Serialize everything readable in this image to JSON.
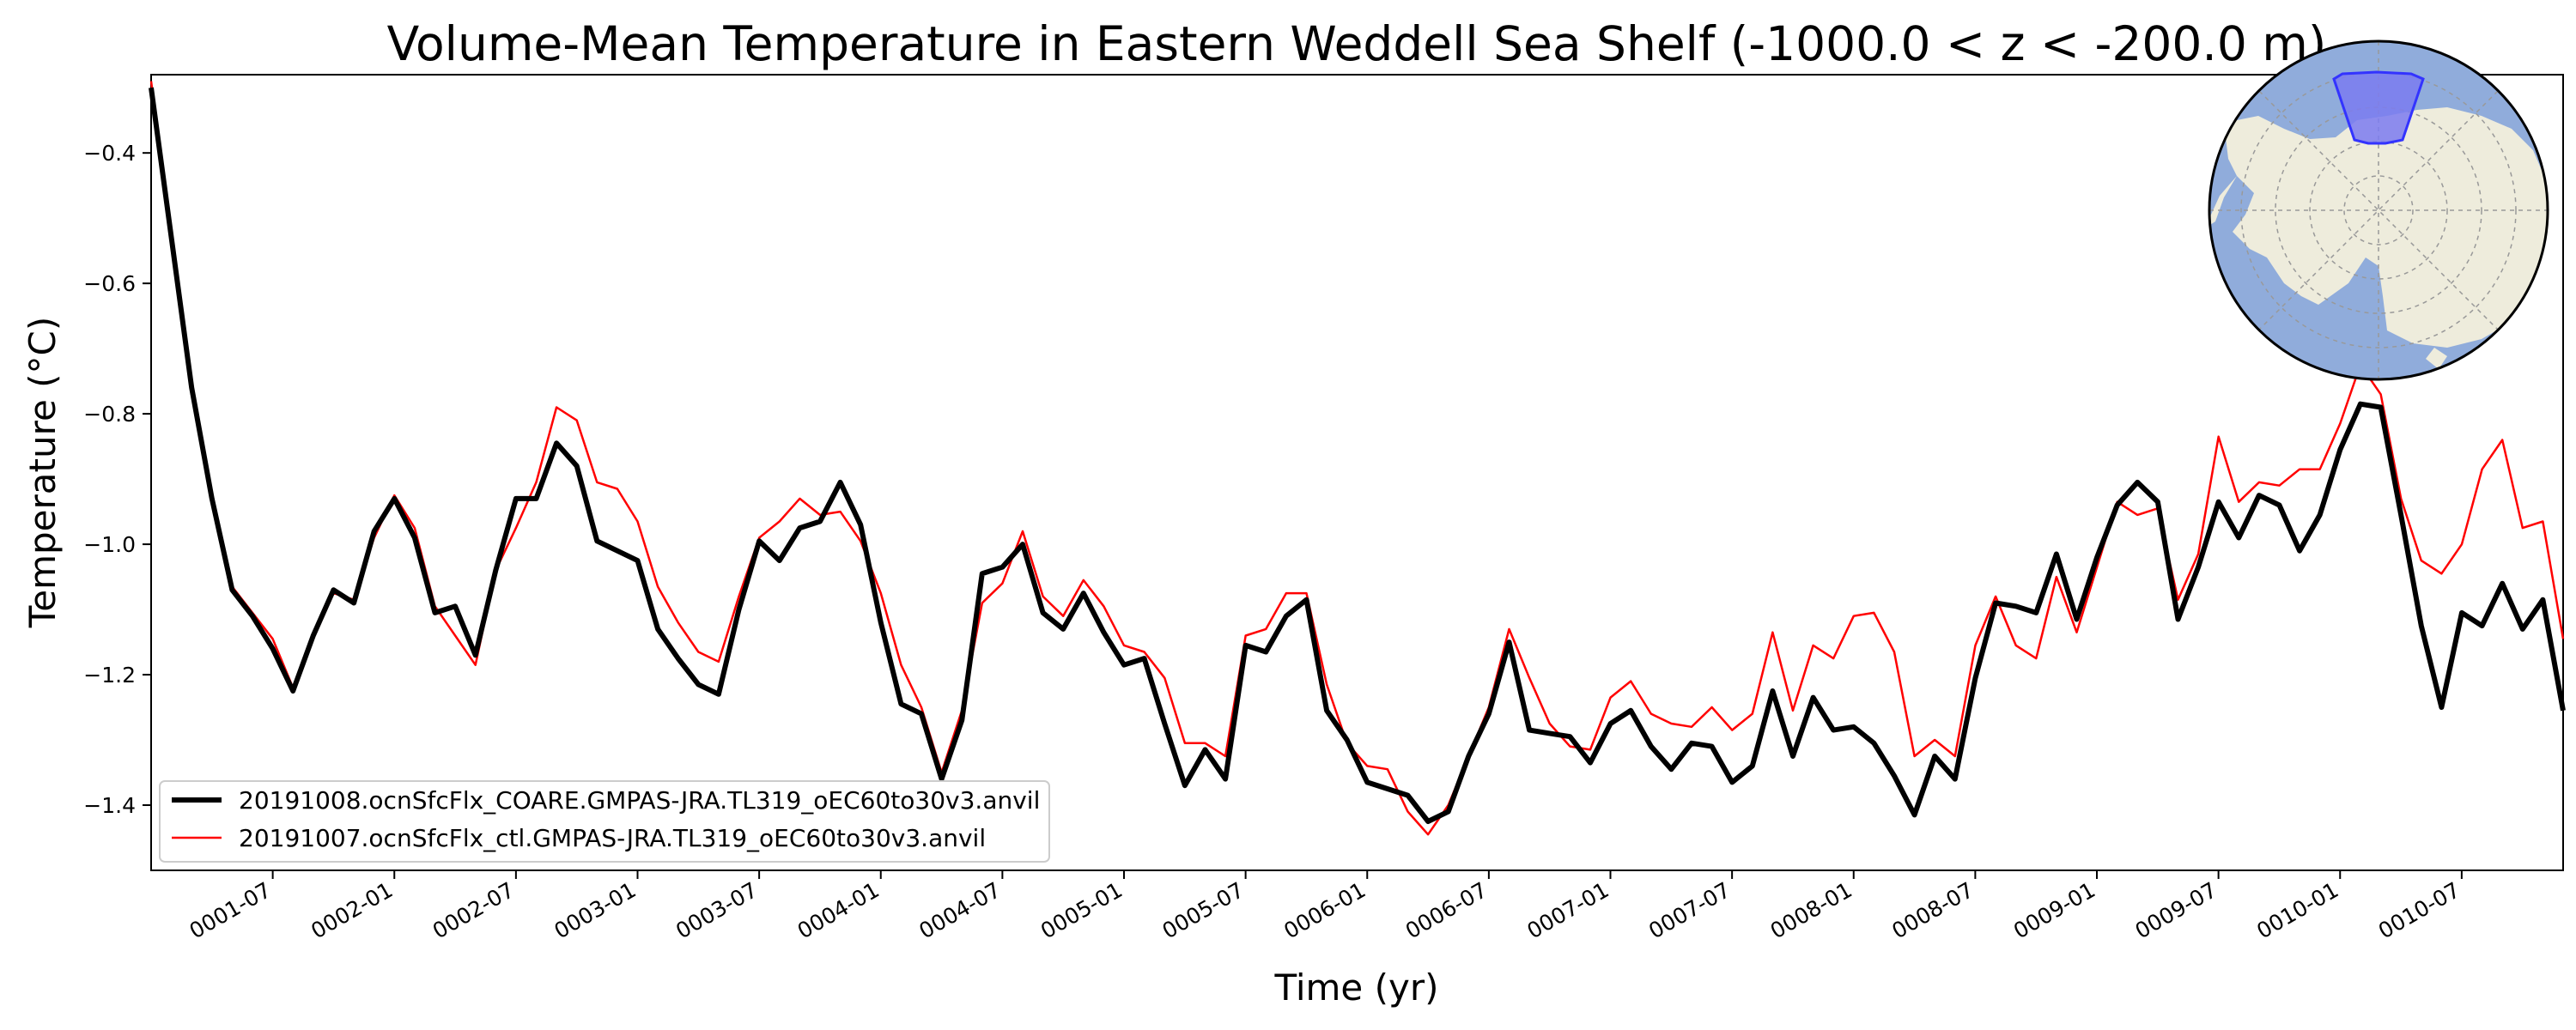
{
  "chart_data": {
    "type": "line",
    "title": "Volume-Mean Temperature in Eastern Weddell Sea Shelf (-1000.0 < z < -200.0 m)",
    "xlabel": "Time (yr)",
    "ylabel": "Temperature (°C)",
    "xlim": [
      1.0,
      10.917
    ],
    "ylim": [
      -1.5,
      -0.28
    ],
    "grid": false,
    "legend_position": "lower-left",
    "x_ticks": [
      1.5,
      2.0,
      2.5,
      3.0,
      3.5,
      4.0,
      4.5,
      5.0,
      5.5,
      6.0,
      6.5,
      7.0,
      7.5,
      8.0,
      8.5,
      9.0,
      9.5,
      10.0,
      10.5
    ],
    "x_tick_labels": [
      "0001-07",
      "0002-01",
      "0002-07",
      "0003-01",
      "0003-07",
      "0004-01",
      "0004-07",
      "0005-01",
      "0005-07",
      "0006-01",
      "0006-07",
      "0007-01",
      "0007-07",
      "0008-01",
      "0008-07",
      "0009-01",
      "0009-07",
      "0010-01",
      "0010-07"
    ],
    "y_ticks": [
      -1.4,
      -1.2,
      -1.0,
      -0.8,
      -0.6,
      -0.4
    ],
    "y_tick_labels": [
      "−1.4",
      "−1.2",
      "−1.0",
      "−0.8",
      "−0.6",
      "−0.4"
    ],
    "series": [
      {
        "name": "20191008.ocnSfcFlx_COARE.GMPAS-JRA.TL319_oEC60to30v3.anvil",
        "color": "#000000",
        "values": [
          -0.3,
          -0.53,
          -0.76,
          -0.93,
          -1.07,
          -1.11,
          -1.16,
          -1.225,
          -1.14,
          -1.07,
          -1.09,
          -0.98,
          -0.93,
          -0.99,
          -1.105,
          -1.095,
          -1.17,
          -1.04,
          -0.93,
          -0.93,
          -0.845,
          -0.88,
          -0.995,
          -1.01,
          -1.025,
          -1.13,
          -1.175,
          -1.215,
          -1.23,
          -1.1,
          -0.995,
          -1.025,
          -0.975,
          -0.965,
          -0.905,
          -0.97,
          -1.12,
          -1.245,
          -1.26,
          -1.36,
          -1.27,
          -1.045,
          -1.035,
          -1.0,
          -1.105,
          -1.13,
          -1.075,
          -1.135,
          -1.185,
          -1.175,
          -1.275,
          -1.37,
          -1.315,
          -1.36,
          -1.155,
          -1.165,
          -1.11,
          -1.085,
          -1.255,
          -1.3,
          -1.365,
          -1.375,
          -1.385,
          -1.425,
          -1.41,
          -1.325,
          -1.26,
          -1.15,
          -1.285,
          -1.29,
          -1.295,
          -1.335,
          -1.275,
          -1.255,
          -1.31,
          -1.345,
          -1.305,
          -1.31,
          -1.365,
          -1.34,
          -1.225,
          -1.325,
          -1.235,
          -1.285,
          -1.28,
          -1.305,
          -1.355,
          -1.415,
          -1.325,
          -1.36,
          -1.205,
          -1.09,
          -1.095,
          -1.105,
          -1.015,
          -1.115,
          -1.02,
          -0.94,
          -0.905,
          -0.935,
          -1.115,
          -1.035,
          -0.935,
          -0.99,
          -0.925,
          -0.94,
          -1.01,
          -0.955,
          -0.855,
          -0.785,
          -0.79,
          -0.955,
          -1.125,
          -1.25,
          -1.105,
          -1.125,
          -1.06,
          -1.13,
          -1.085,
          -1.255
        ]
      },
      {
        "name": "20191007.ocnSfcFlx_ctl.GMPAS-JRA.TL319_oEC60to30v3.anvil",
        "color": "#ff0000",
        "values": [
          -0.29,
          -0.52,
          -0.75,
          -0.93,
          -1.065,
          -1.105,
          -1.145,
          -1.22,
          -1.145,
          -1.075,
          -1.085,
          -0.99,
          -0.925,
          -0.975,
          -1.095,
          -1.14,
          -1.185,
          -1.04,
          -0.975,
          -0.905,
          -0.79,
          -0.81,
          -0.905,
          -0.915,
          -0.965,
          -1.065,
          -1.12,
          -1.165,
          -1.18,
          -1.08,
          -0.99,
          -0.965,
          -0.93,
          -0.955,
          -0.95,
          -0.995,
          -1.075,
          -1.185,
          -1.25,
          -1.35,
          -1.255,
          -1.09,
          -1.06,
          -0.98,
          -1.08,
          -1.11,
          -1.055,
          -1.095,
          -1.155,
          -1.165,
          -1.205,
          -1.305,
          -1.305,
          -1.325,
          -1.14,
          -1.13,
          -1.075,
          -1.075,
          -1.215,
          -1.305,
          -1.34,
          -1.345,
          -1.41,
          -1.445,
          -1.4,
          -1.325,
          -1.25,
          -1.13,
          -1.205,
          -1.275,
          -1.31,
          -1.315,
          -1.235,
          -1.21,
          -1.26,
          -1.275,
          -1.28,
          -1.25,
          -1.285,
          -1.26,
          -1.135,
          -1.255,
          -1.155,
          -1.175,
          -1.11,
          -1.105,
          -1.165,
          -1.325,
          -1.3,
          -1.325,
          -1.155,
          -1.08,
          -1.155,
          -1.175,
          -1.05,
          -1.135,
          -1.035,
          -0.935,
          -0.955,
          -0.945,
          -1.085,
          -1.015,
          -0.835,
          -0.935,
          -0.905,
          -0.91,
          -0.885,
          -0.885,
          -0.815,
          -0.725,
          -0.77,
          -0.93,
          -1.025,
          -1.045,
          -1.0,
          -0.885,
          -0.84,
          -0.975,
          -0.965,
          -1.145
        ]
      }
    ]
  },
  "inset_map": {
    "ocean_color": "#90acdb",
    "land_color": "#eeecdc",
    "region_color": "#7b7bf0",
    "region_edge_color": "#3333ff"
  }
}
